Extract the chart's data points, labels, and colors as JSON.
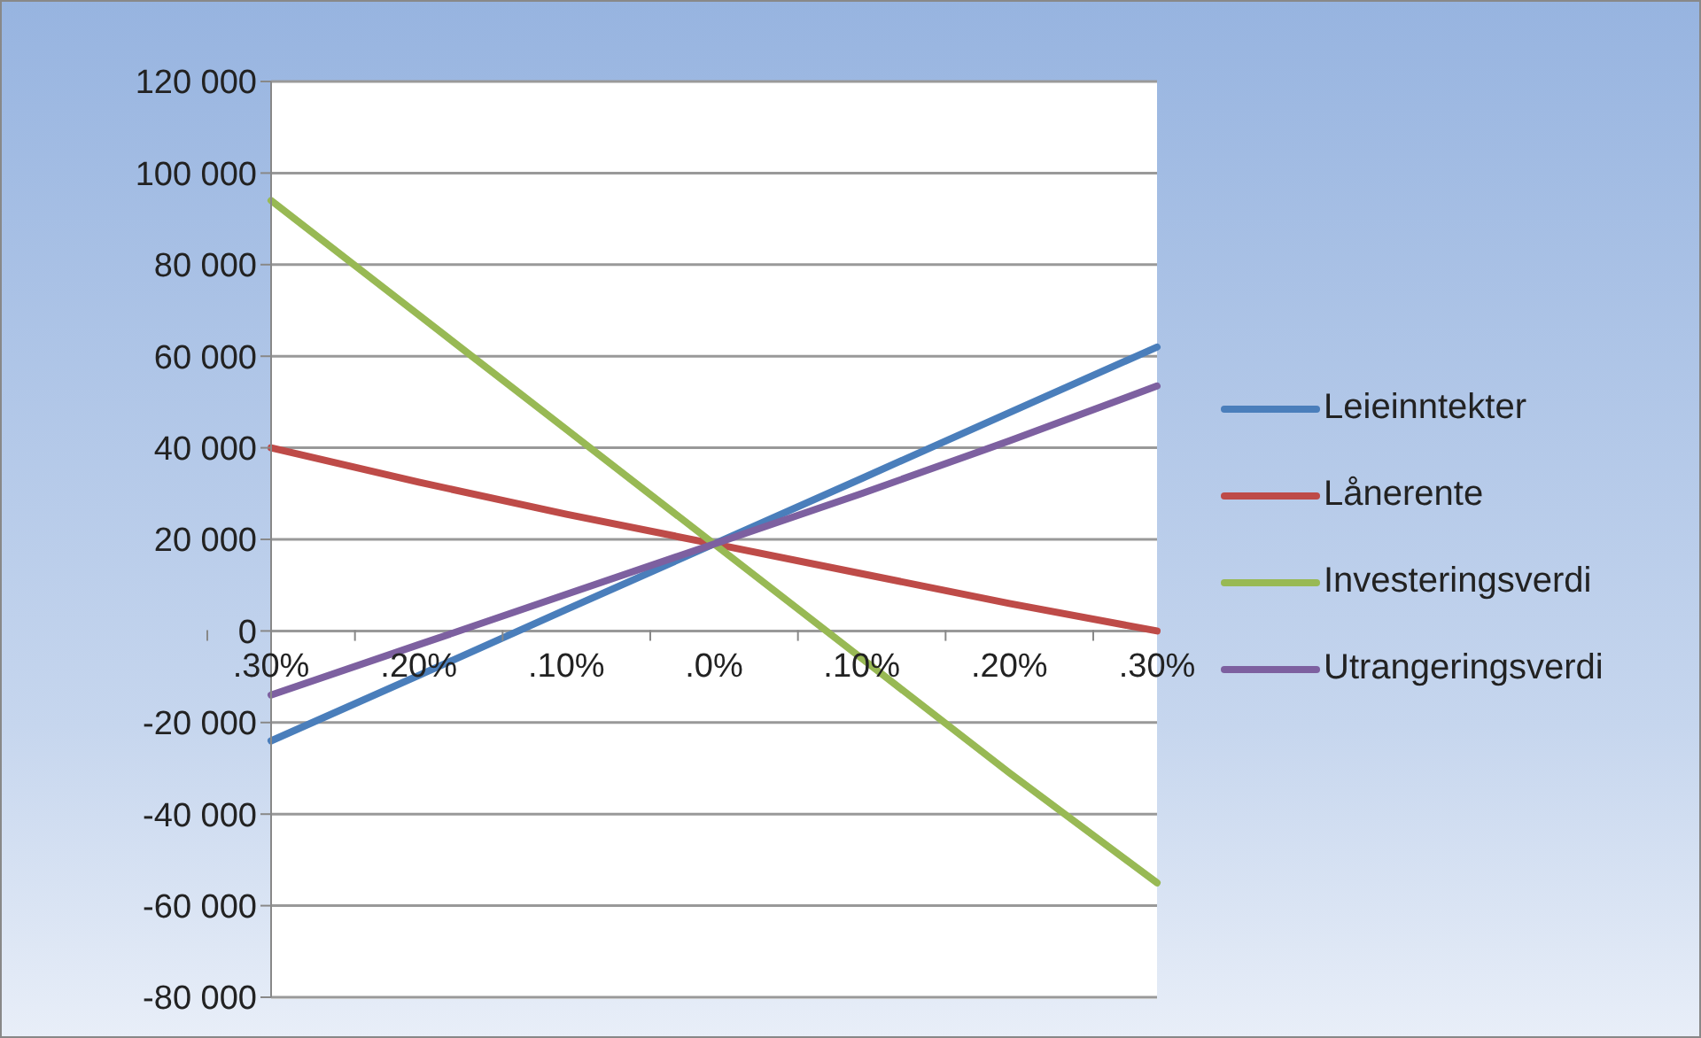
{
  "chart_data": {
    "type": "line",
    "categories": [
      ".30%",
      ".20%",
      ".10%",
      ".0%",
      ".10%",
      ".20%",
      ".30%"
    ],
    "series": [
      {
        "name": "Leieinntekter",
        "color": "#4a7ebb",
        "values": [
          -24000,
          -9700,
          4700,
          19000,
          33300,
          47700,
          62000
        ]
      },
      {
        "name": "Lånerente",
        "color": "#be4b48",
        "values": [
          40000,
          32500,
          25500,
          19000,
          12500,
          6000,
          0
        ]
      },
      {
        "name": "Investeringsverdi",
        "color": "#98b954",
        "values": [
          94000,
          69000,
          44000,
          19000,
          -6000,
          -31000,
          -55000
        ]
      },
      {
        "name": "Utrangeringsverdi",
        "color": "#7d60a0",
        "values": [
          -14000,
          -3000,
          8000,
          19000,
          30000,
          41500,
          53500
        ]
      }
    ],
    "ylim": [
      -80000,
      120000
    ],
    "yticks": [
      {
        "value": -80000,
        "label": "-80 000"
      },
      {
        "value": -60000,
        "label": "-60 000"
      },
      {
        "value": -40000,
        "label": "-40 000"
      },
      {
        "value": -20000,
        "label": "-20 000"
      },
      0,
      {
        "value": 20000,
        "label": "20 000"
      },
      {
        "value": 40000,
        "label": "40 000"
      },
      {
        "value": 60000,
        "label": "60 000"
      },
      {
        "value": 80000,
        "label": "80 000"
      },
      {
        "value": 100000,
        "label": "100 000"
      },
      {
        "value": 120000,
        "label": "120 000"
      }
    ],
    "grid": "y",
    "legend": "right",
    "marker": "none",
    "line_style": "solid"
  }
}
